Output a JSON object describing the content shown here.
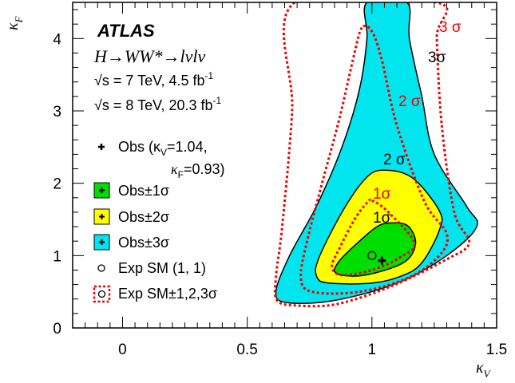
{
  "chart_data": {
    "type": "contour",
    "xlabel": "κ",
    "xlabel_sub": "V",
    "ylabel": "κ",
    "ylabel_sub": "F",
    "xlim": [
      -0.2,
      1.5
    ],
    "ylim": [
      0,
      4.5
    ],
    "x_ticks": [
      {
        "value": 0,
        "label": "0"
      },
      {
        "value": 0.5,
        "label": "0.5"
      },
      {
        "value": 1,
        "label": "1"
      },
      {
        "value": 1.5,
        "label": "1.5"
      }
    ],
    "y_ticks": [
      {
        "value": 0,
        "label": "0"
      },
      {
        "value": 1,
        "label": "1"
      },
      {
        "value": 2,
        "label": "2"
      },
      {
        "value": 3,
        "label": "3"
      },
      {
        "value": 4,
        "label": "4"
      }
    ],
    "header": {
      "experiment": "ATLAS",
      "process": "H→WW*→lνlν",
      "dataset_7tev": "√s = 7 TeV, 4.5 fb",
      "dataset_7tev_sup": "-1",
      "dataset_8tev": "√s = 8 TeV, 20.3 fb",
      "dataset_8tev_sup": "-1"
    },
    "observed": {
      "kappa_V": 1.04,
      "kappa_F": 0.93
    },
    "expected_sm": {
      "kappa_V": 1,
      "kappa_F": 1
    },
    "legend": {
      "obs_line1": "Obs (κ",
      "obs_sub": "V",
      "obs_val1": "=1.04,",
      "obs_line2": "κ",
      "obs_sub2": "F",
      "obs_val2": "=0.93)",
      "obs_1sigma": "Obs±1σ",
      "obs_2sigma": "Obs±2σ",
      "obs_3sigma": "Obs±3σ",
      "exp_sm": "Exp SM (1, 1)",
      "exp_sm_sigma": "Exp SM±1,2,3σ"
    },
    "contour_labels": {
      "obs_1": "1σ",
      "obs_2": "2 σ",
      "obs_3": "3σ",
      "exp_1": "1σ",
      "exp_2": "2 σ",
      "exp_3": "3 σ"
    },
    "observed_contours": [
      {
        "level": "3σ",
        "color": "#00e5ee",
        "points": [
          [
            0.98,
            4.5
          ],
          [
            0.98,
            4.0
          ],
          [
            0.95,
            3.3
          ],
          [
            0.88,
            2.5
          ],
          [
            0.78,
            1.7
          ],
          [
            0.67,
            1.0
          ],
          [
            0.615,
            0.5
          ],
          [
            0.66,
            0.35
          ],
          [
            0.85,
            0.38
          ],
          [
            1.1,
            0.62
          ],
          [
            1.3,
            1.0
          ],
          [
            1.42,
            1.4
          ],
          [
            1.38,
            1.68
          ],
          [
            1.25,
            2.4
          ],
          [
            1.2,
            3.2
          ],
          [
            1.15,
            4.0
          ],
          [
            1.14,
            4.5
          ]
        ]
      },
      {
        "level": "2σ",
        "color": "#ffff00",
        "points": [
          [
            1.04,
            2.18
          ],
          [
            1.16,
            2.08
          ],
          [
            1.27,
            1.62
          ],
          [
            1.27,
            1.35
          ],
          [
            1.2,
            0.9
          ],
          [
            1.12,
            0.72
          ],
          [
            1.0,
            0.62
          ],
          [
            0.83,
            0.62
          ],
          [
            0.78,
            0.7
          ],
          [
            0.785,
            0.95
          ],
          [
            0.88,
            1.6
          ],
          [
            0.97,
            2.05
          ]
        ]
      },
      {
        "level": "1σ",
        "color": "#00dd00",
        "points": [
          [
            1.07,
            1.45
          ],
          [
            1.14,
            1.42
          ],
          [
            1.175,
            1.2
          ],
          [
            1.15,
            0.97
          ],
          [
            1.08,
            0.83
          ],
          [
            0.95,
            0.72
          ],
          [
            0.855,
            0.76
          ],
          [
            0.87,
            0.93
          ],
          [
            0.95,
            1.2
          ],
          [
            1.02,
            1.4
          ]
        ]
      }
    ],
    "expected_contours": [
      {
        "level": "3σ",
        "color": "#ee0000",
        "points": [
          [
            0.69,
            4.5
          ],
          [
            0.68,
            3.0
          ],
          [
            0.64,
            1.4
          ],
          [
            0.615,
            0.7
          ],
          [
            0.62,
            0.38
          ],
          [
            0.7,
            0.31
          ],
          [
            0.86,
            0.33
          ],
          [
            1.08,
            0.58
          ],
          [
            1.3,
            0.95
          ],
          [
            1.39,
            1.18
          ],
          [
            1.33,
            1.6
          ],
          [
            1.28,
            2.8
          ],
          [
            1.26,
            4.0
          ],
          [
            1.26,
            4.5
          ]
        ]
      },
      {
        "level": "2σ",
        "color": "#ee0000",
        "points": [
          [
            0.96,
            4.15
          ],
          [
            0.93,
            3.8
          ],
          [
            0.87,
            2.9
          ],
          [
            0.8,
            2.0
          ],
          [
            0.74,
            1.2
          ],
          [
            0.715,
            0.7
          ],
          [
            0.76,
            0.5
          ],
          [
            0.95,
            0.5
          ],
          [
            1.15,
            0.7
          ],
          [
            1.27,
            1.0
          ],
          [
            1.3,
            1.3
          ],
          [
            1.21,
            1.75
          ],
          [
            1.1,
            2.8
          ],
          [
            1.04,
            3.7
          ],
          [
            1.0,
            4.1
          ]
        ]
      },
      {
        "level": "1σ",
        "color": "#ee0000",
        "points": [
          [
            1.0,
            1.76
          ],
          [
            1.06,
            1.62
          ],
          [
            1.17,
            1.18
          ],
          [
            1.11,
            0.97
          ],
          [
            1.0,
            0.8
          ],
          [
            0.88,
            0.73
          ],
          [
            0.84,
            0.85
          ],
          [
            0.87,
            1.1
          ],
          [
            0.93,
            1.5
          ],
          [
            0.98,
            1.73
          ]
        ]
      }
    ]
  }
}
